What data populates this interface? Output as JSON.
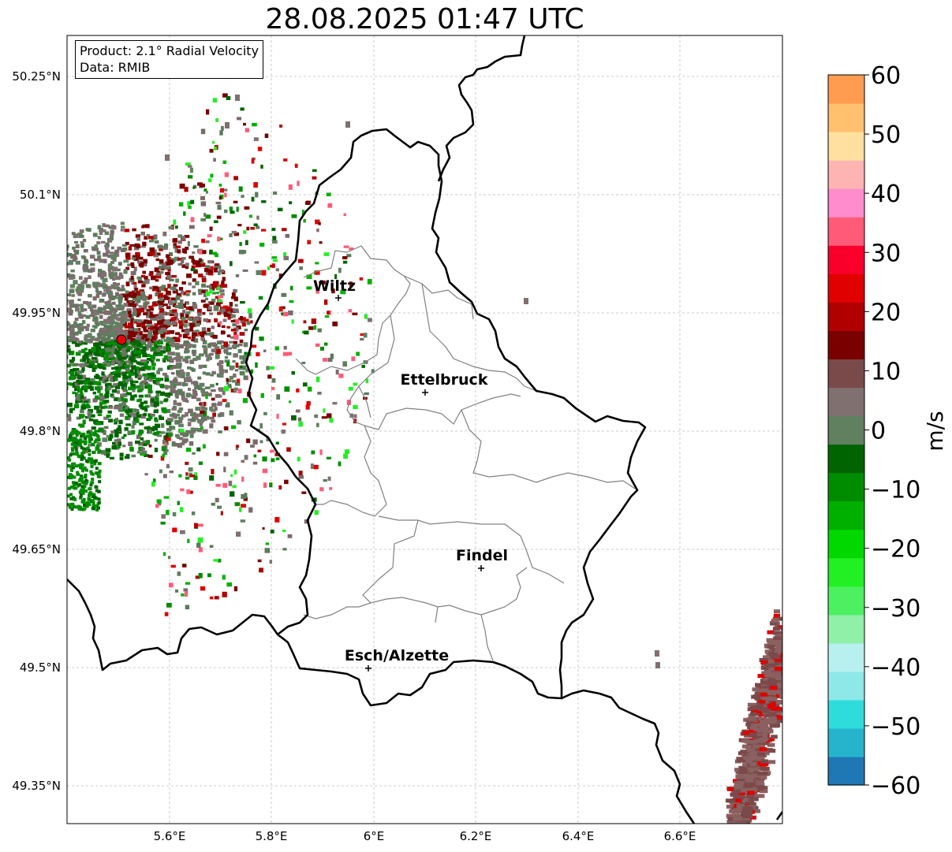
{
  "title": "28.08.2025 01:47 UTC",
  "info": {
    "product": "Product: 2.1° Radial Velocity",
    "data": "Data: RMIB"
  },
  "axes": {
    "lat_ticks": [
      "50.25°N",
      "50.1°N",
      "49.95°N",
      "49.8°N",
      "49.65°N",
      "49.5°N",
      "49.35°N"
    ],
    "lon_ticks": [
      "5.6°E",
      "5.8°E",
      "6°E",
      "6.2°E",
      "6.4°E",
      "6.6°E"
    ],
    "lon_range": [
      5.4,
      6.8
    ],
    "lat_range": [
      49.3,
      50.3
    ]
  },
  "cities": [
    {
      "name": "Wiltz",
      "lon": 5.93,
      "lat": 49.97
    },
    {
      "name": "Ettelbruck",
      "lon": 6.1,
      "lat": 49.85
    },
    {
      "name": "Findel",
      "lon": 6.21,
      "lat": 49.626
    },
    {
      "name": "Esch/Alzette",
      "lon": 5.99,
      "lat": 49.5
    }
  ],
  "radar_site": {
    "lon": 5.505,
    "lat": 49.914,
    "color": "#e8000b"
  },
  "colorbar": {
    "label": "m/s",
    "min": -60,
    "max": 60,
    "ticks": [
      "60",
      "50",
      "40",
      "30",
      "20",
      "10",
      "0",
      "−10",
      "−20",
      "−30",
      "−40",
      "−50",
      "−60"
    ],
    "colors": [
      "#1f78b4",
      "#26b4cc",
      "#2fdcdc",
      "#8ee8e8",
      "#b8f0f0",
      "#90f0a8",
      "#4cf060",
      "#22f022",
      "#00d800",
      "#00b000",
      "#008c00",
      "#006400",
      "#608060",
      "#807070",
      "#7a4a4a",
      "#7a0000",
      "#b00000",
      "#e00000",
      "#f8002a",
      "#ff5a78",
      "#ff8ccc",
      "#ffb4b4",
      "#ffe0a0",
      "#ffc070",
      "#ff9c50"
    ]
  }
}
